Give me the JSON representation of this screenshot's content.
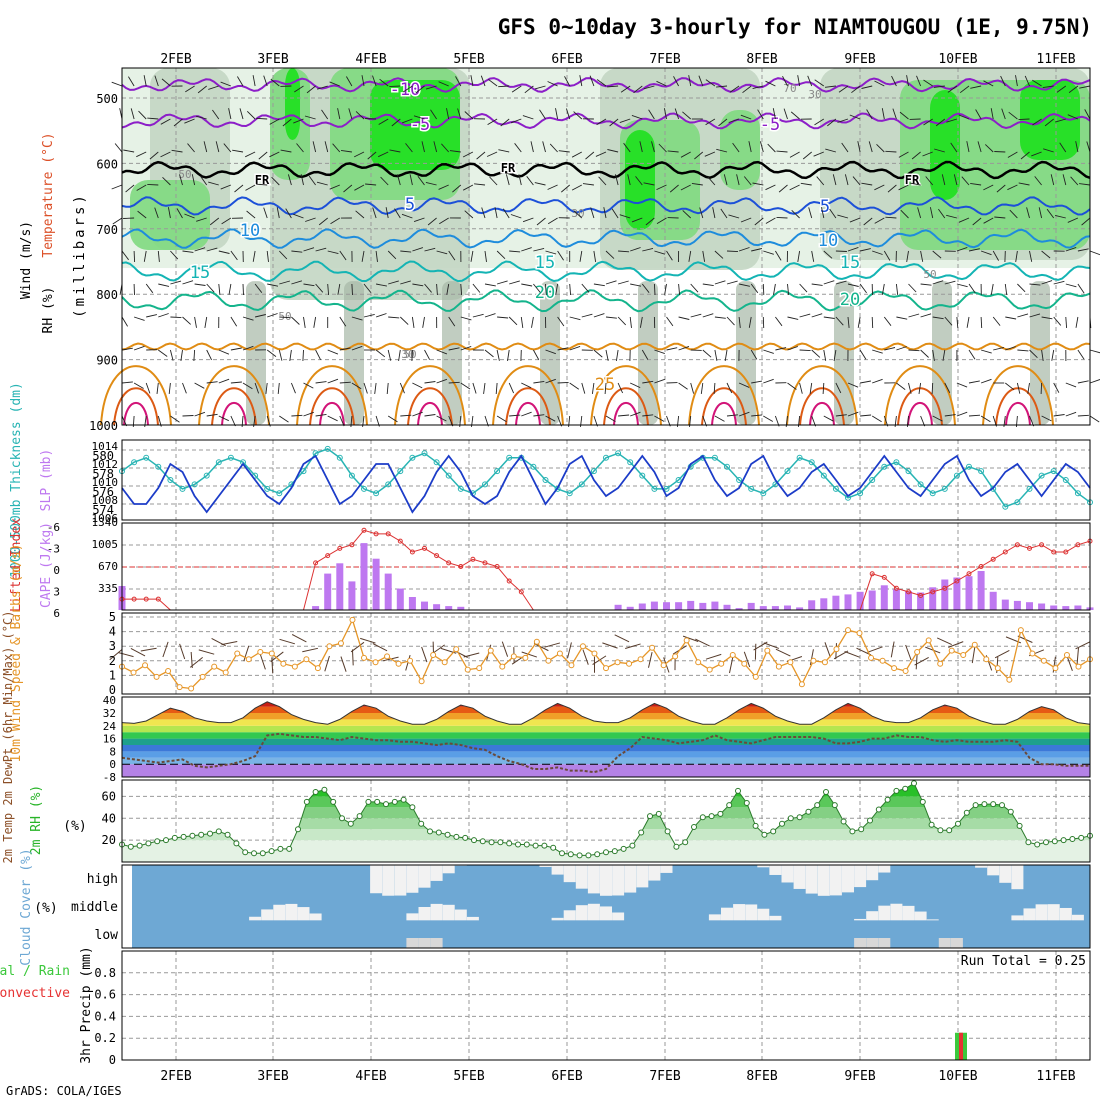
{
  "title": "GFS 0~10day 3-hourly for NIAMTOUGOU (1E, 9.75N)",
  "credit": "GrADS: COLA/IGES",
  "dates": [
    "2FEB",
    "3FEB",
    "4FEB",
    "5FEB",
    "6FEB",
    "7FEB",
    "8FEB",
    "9FEB",
    "10FEB",
    "11FEB"
  ],
  "colors": {
    "rh_light": "#e6f2e6",
    "rh_mid": "#c3d6c3",
    "rh_gray": "#a6b8a6",
    "rh_green": "#7fd97f",
    "rh_bright": "#1ee01e",
    "slp": "#1c3cc8",
    "thickness": "#28b4b4",
    "cape": "#be78f0",
    "lifted": "#dc3232",
    "wind": "#e69628",
    "rh2m": "#28b428",
    "cloud": "#6ea8d4",
    "cloud_clear": "#f2f2f2",
    "precip_total": "#3cc83c",
    "precip_conv": "#e63232"
  },
  "panels": {
    "upper": {
      "ylabel_rh": "RH (%)",
      "ylabel_temp": "Temperature (°C)",
      "ylabel_wind": "Wind (m/s)",
      "ylabel_p": "(millibars)",
      "levels": [
        "500",
        "600",
        "700",
        "800",
        "900",
        "1000"
      ],
      "fr_label": "FR",
      "contours": [
        {
          "label": "-10",
          "temp": -10
        },
        {
          "label": "-5",
          "temp": -5
        },
        {
          "label": "5",
          "temp": 5
        },
        {
          "label": "10",
          "temp": 10
        },
        {
          "label": "15",
          "temp": 15
        },
        {
          "label": "20",
          "temp": 20
        },
        {
          "label": "25",
          "temp": 25
        }
      ],
      "rh_labels": [
        "50",
        "30",
        "50",
        "30",
        "50",
        "30",
        "50",
        "70"
      ]
    },
    "slp": {
      "ylabel_left": "1000-500mb Thickness (dm)",
      "ylabel_right": "SLP (mb)",
      "left_ticks": [
        "574",
        "576",
        "578",
        "580"
      ],
      "right_ticks": [
        "1006",
        "1008",
        "1010",
        "1012",
        "1014"
      ]
    },
    "cape": {
      "ylabel_left": "Lifted Index",
      "ylabel_right": "CAPE (J/kg)",
      "left_ticks": [
        "-6",
        "-3",
        "0",
        "3",
        "6"
      ],
      "right_ticks": [
        "335",
        "670",
        "1005",
        "1340"
      ]
    },
    "wind": {
      "ylabel": "10m Wind Speed & Barbs (m/s)",
      "ticks": [
        "0",
        "1",
        "2",
        "3",
        "4",
        "5"
      ]
    },
    "temp": {
      "ylabel": "2m Temp 2m DewPt (6hr Min/Max) (°C)",
      "ticks": [
        "-8",
        "0",
        "8",
        "16",
        "24",
        "32",
        "40"
      ]
    },
    "rh": {
      "ylabel": "2m RH (%)",
      "ticks": [
        "20",
        "40",
        "60"
      ]
    },
    "cloud": {
      "ylabel": "Cloud Cover (%)",
      "levels": [
        "high",
        "middle",
        "low"
      ]
    },
    "precip": {
      "ylabel_1": "Total / Rain",
      "ylabel_2": "Convective",
      "ylabel_3": "3hr Precip (mm)",
      "ticks": [
        "0",
        "0.2",
        "0.4",
        "0.6",
        "0.8"
      ],
      "run_total": "Run Total = 0.25"
    }
  },
  "chart_data": [
    {
      "type": "line",
      "title": "",
      "xlabel": "",
      "ylabel": "SLP (mb)",
      "series": [
        {
          "name": "SLP",
          "values": [
            1009,
            1007,
            1007,
            1009,
            1012,
            1011,
            1008,
            1006,
            1008,
            1010,
            1012,
            1010,
            1008,
            1007,
            1009,
            1012,
            1013,
            1010,
            1007,
            1008,
            1010,
            1012,
            1012,
            1009,
            1006,
            1008,
            1011,
            1013,
            1011,
            1008,
            1007,
            1008,
            1011,
            1013,
            1010,
            1007,
            1009,
            1012,
            1013,
            1010,
            1008,
            1009,
            1011,
            1013,
            1011,
            1008,
            1009,
            1012,
            1013,
            1010,
            1008,
            1009,
            1012,
            1013,
            1010,
            1008,
            1009,
            1011,
            1012,
            1010,
            1008,
            1009,
            1011,
            1013,
            1011,
            1009,
            1008,
            1010,
            1012,
            1013,
            1010,
            1008,
            1009,
            1011,
            1012,
            1010,
            1008,
            1010,
            1012,
            1011,
            1009
          ]
        }
      ],
      "ylim": [
        1005,
        1015
      ]
    },
    {
      "type": "line",
      "title": "",
      "xlabel": "",
      "ylabel": "1000-500mb Thickness (dm)",
      "series": [
        {
          "name": "Thickness",
          "values": [
            578.5,
            579.5,
            580,
            579,
            577.5,
            576.5,
            577,
            578,
            579.5,
            580,
            579.5,
            578,
            576.5,
            576,
            577,
            578.5,
            580.5,
            581,
            580,
            578,
            576.5,
            576,
            577,
            578.5,
            580,
            580.5,
            579.5,
            578,
            576.5,
            576,
            577,
            578.5,
            580,
            580,
            579,
            577.5,
            576.5,
            576,
            577,
            578.5,
            580,
            580.5,
            579.5,
            578,
            576.5,
            576.5,
            577.5,
            579,
            580,
            580,
            579,
            577.5,
            576.5,
            576,
            577,
            578.5,
            580,
            579.5,
            578,
            576.5,
            575.5,
            576,
            577.5,
            579,
            579.5,
            578.5,
            577,
            576,
            576.5,
            578,
            579,
            578.5,
            576.5,
            574.5,
            575,
            576.5,
            578,
            578.5,
            577.5,
            576,
            575
          ]
        }
      ],
      "ylim": [
        573,
        582
      ]
    },
    {
      "type": "bar",
      "title": "",
      "ylabel": "CAPE (J/kg)",
      "series": [
        {
          "name": "CAPE",
          "values": [
            0,
            0,
            0,
            0,
            0,
            0,
            0,
            0,
            0,
            0,
            0,
            0,
            0,
            0,
            0,
            0,
            60,
            560,
            720,
            440,
            1030,
            790,
            560,
            330,
            200,
            130,
            90,
            60,
            50,
            0,
            0,
            0,
            0,
            0,
            0,
            0,
            0,
            0,
            0,
            0,
            0,
            0,
            0,
            0,
            0,
            0,
            0,
            0,
            0,
            0,
            0,
            0,
            0,
            0,
            0,
            0,
            0,
            0,
            0,
            0,
            0,
            0,
            0,
            0,
            0,
            0,
            0,
            0,
            0,
            0,
            0,
            0,
            0,
            0,
            0,
            0,
            0,
            0,
            0,
            0,
            0
          ]
        },
        {
          "name": "CAPE-2",
          "values": [
            370,
            0,
            0,
            0,
            0,
            0,
            0,
            0,
            0,
            0,
            0,
            0,
            0,
            0,
            0,
            0,
            0,
            0,
            0,
            0,
            0,
            0,
            0,
            0,
            0,
            0,
            0,
            0,
            0,
            0,
            0,
            0,
            0,
            0,
            0,
            0,
            0,
            0,
            0,
            0,
            0,
            80,
            50,
            100,
            130,
            120,
            120,
            140,
            110,
            130,
            80,
            30,
            110,
            60,
            60,
            70,
            40,
            150,
            180,
            220,
            240,
            280,
            300,
            380,
            320,
            290,
            270,
            350,
            470,
            500,
            520,
            600,
            280,
            160,
            140,
            120,
            100,
            70,
            60,
            70,
            40
          ]
        }
      ],
      "ylim": [
        0,
        1340
      ]
    },
    {
      "type": "line",
      "title": "",
      "ylabel": "Lifted Index",
      "series": [
        {
          "name": "Lifted Index",
          "values": [
            4.5,
            4.5,
            4.5,
            4.5,
            6,
            6,
            6,
            6,
            6,
            6,
            6,
            6,
            6,
            6,
            6,
            6,
            -0.5,
            -1.5,
            -2.5,
            -3,
            -5,
            -4.5,
            -4.5,
            -3.5,
            -2,
            -2.5,
            -1.5,
            -0.5,
            0,
            -1,
            -0.5,
            0,
            2,
            3.5,
            6,
            6,
            6,
            6,
            6,
            6,
            6,
            6,
            6,
            6,
            6,
            6,
            6,
            6,
            6,
            6,
            6,
            6,
            6,
            6,
            6,
            6,
            6,
            6,
            6,
            6,
            6,
            6,
            1,
            1.5,
            3,
            3.5,
            4,
            3.5,
            3,
            2,
            1,
            0,
            -1,
            -2,
            -3,
            -2.5,
            -3,
            -2,
            -2,
            -3,
            -3.5
          ]
        }
      ],
      "ylim": [
        6,
        -6
      ]
    },
    {
      "type": "line",
      "title": "",
      "ylabel": "10m Wind Speed (m/s)",
      "series": [
        {
          "name": "Wind Speed",
          "values": [
            1.6,
            1.2,
            1.7,
            0.9,
            1.3,
            0.2,
            0.1,
            0.9,
            1.6,
            1.2,
            2.5,
            2.1,
            2.6,
            2.5,
            1.8,
            1.6,
            2.1,
            1.5,
            3.0,
            3.2,
            4.8,
            2.2,
            1.9,
            2.3,
            1.8,
            2.0,
            0.6,
            2.4,
            1.9,
            2.8,
            1.4,
            1.5,
            2.7,
            1.6,
            2.3,
            2.2,
            3.3,
            2.0,
            2.5,
            1.7,
            3.0,
            2.5,
            1.5,
            1.9,
            1.8,
            2.1,
            2.9,
            1.7,
            2.3,
            3.4,
            1.9,
            1.4,
            1.8,
            2.4,
            1.8,
            0.9,
            2.7,
            1.6,
            1.9,
            0.4,
            2.0,
            1.9,
            2.8,
            4.1,
            3.9,
            2.2,
            2.0,
            1.5,
            1.3,
            2.6,
            3.4,
            1.8,
            2.7,
            2.4,
            3.1,
            2.1,
            1.5,
            0.7,
            4.1,
            2.5,
            2.0,
            1.5,
            2.4,
            1.6,
            2.1
          ]
        }
      ],
      "ylim": [
        0,
        5
      ]
    },
    {
      "type": "area",
      "title": "",
      "ylabel": "2m Temp (°C)",
      "series": [
        {
          "name": "2m Temp",
          "values": [
            26,
            25.5,
            27,
            31,
            35,
            33,
            29,
            27,
            26,
            26,
            29,
            35,
            39,
            36,
            31,
            28,
            26,
            25,
            28,
            33,
            37,
            35,
            30,
            27,
            25,
            25,
            28,
            33,
            37,
            35,
            30,
            27,
            25,
            25,
            29,
            34,
            38,
            35,
            30,
            27,
            26,
            26,
            29,
            34,
            38,
            35,
            30,
            27,
            25,
            25,
            29,
            34,
            38,
            35,
            30,
            27,
            25,
            25,
            29,
            34,
            38,
            35,
            30,
            27,
            26,
            26,
            29,
            34,
            37,
            35,
            30,
            27,
            25,
            25,
            28,
            33,
            36,
            34,
            29,
            26,
            25
          ]
        },
        {
          "name": "2m DewPt",
          "values": [
            4,
            3,
            2,
            1,
            2,
            3,
            -1,
            -2,
            -1,
            0,
            2,
            5,
            18,
            19,
            18,
            17,
            17,
            16,
            15,
            17,
            16,
            15,
            15,
            14,
            14,
            13,
            12,
            13,
            12,
            10,
            9,
            5,
            2,
            0,
            -3,
            -3,
            -2,
            -4,
            -4,
            -5,
            -3,
            5,
            10,
            17,
            16,
            15,
            13,
            14,
            15,
            18,
            15,
            14,
            13,
            15,
            17,
            17,
            17,
            17,
            16,
            13,
            13,
            14,
            16,
            16,
            18,
            17,
            17,
            15,
            14,
            15,
            14,
            14,
            14,
            15,
            14,
            4,
            0,
            0,
            -1,
            -1,
            -1
          ]
        }
      ],
      "ylim": [
        -8,
        42
      ]
    },
    {
      "type": "area",
      "title": "",
      "ylabel": "2m RH (%)",
      "series": [
        {
          "name": "2m RH",
          "values": [
            16,
            14,
            15,
            17,
            19,
            20,
            22,
            23,
            24,
            25,
            26,
            28,
            25,
            17,
            9,
            8,
            8,
            10,
            12,
            12,
            30,
            55,
            64,
            66,
            55,
            40,
            35,
            42,
            55,
            55,
            53,
            55,
            57,
            50,
            35,
            28,
            27,
            25,
            23,
            22,
            20,
            19,
            18,
            18,
            17,
            16,
            16,
            15,
            15,
            13,
            8,
            7,
            6,
            6,
            7,
            9,
            10,
            12,
            15,
            27,
            42,
            44,
            28,
            14,
            18,
            32,
            41,
            42,
            44,
            52,
            65,
            54,
            33,
            25,
            28,
            35,
            40,
            41,
            46,
            52,
            64,
            52,
            37,
            28,
            30,
            38,
            48,
            57,
            65,
            67,
            72,
            55,
            34,
            29,
            29,
            35,
            45,
            52,
            53,
            53,
            52,
            46,
            33,
            18,
            16,
            18,
            19,
            20,
            21,
            22,
            24
          ]
        }
      ],
      "ylim": [
        0,
        75
      ]
    },
    {
      "type": "bar",
      "title": "",
      "ylabel": "3hr Precip (mm)",
      "categories": [
        "10FEB"
      ],
      "series": [
        {
          "name": "Total / Rain",
          "values": [
            0.25
          ]
        },
        {
          "name": "Convective",
          "values": [
            0.25
          ]
        }
      ],
      "ylim": [
        0,
        1
      ]
    }
  ]
}
